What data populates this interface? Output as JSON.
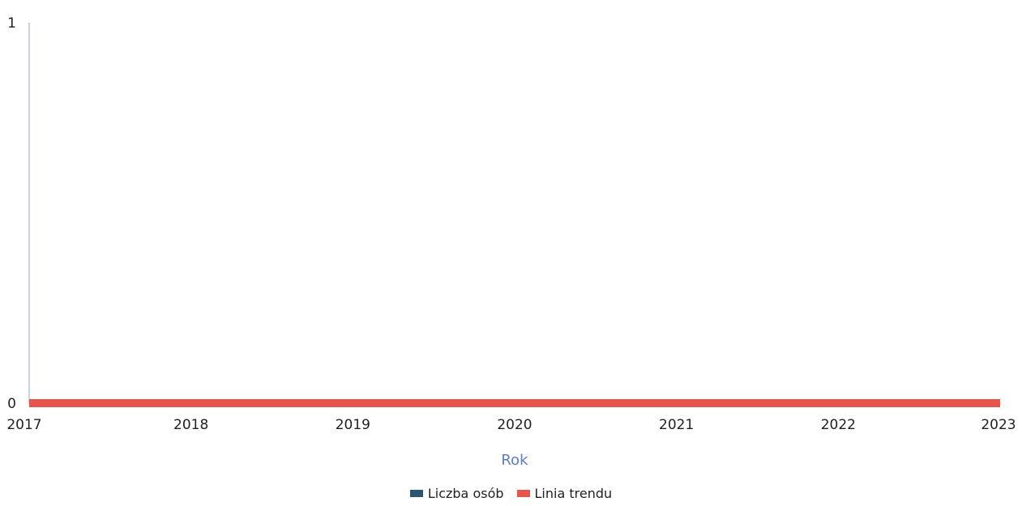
{
  "chart_data": {
    "type": "line",
    "x": [
      2017,
      2018,
      2019,
      2020,
      2021,
      2022,
      2023
    ],
    "xlabel": "Rok",
    "ylabel": "",
    "ylim": [
      0,
      1
    ],
    "y_ticks": [
      0,
      1
    ],
    "grid": false,
    "legend_position": "bottom",
    "series": [
      {
        "name": "Liczba osób",
        "values": [
          0,
          0,
          0,
          0,
          0,
          0,
          0
        ],
        "color": "#2b5573"
      },
      {
        "name": "Linia trendu",
        "values": [
          0,
          0,
          0,
          0,
          0,
          0,
          0
        ],
        "color": "#e8554c"
      }
    ],
    "y_axis_color": "#8ea5cf",
    "xlabel_color": "#5a7fc0"
  }
}
